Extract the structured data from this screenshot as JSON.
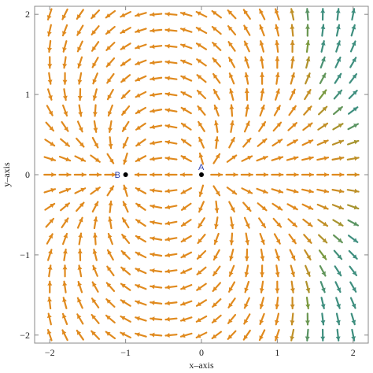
{
  "chart_data": {
    "type": "vector-field",
    "xlabel": "x–axis",
    "ylabel": "y–axis",
    "xlim": [
      -2.2,
      2.2
    ],
    "ylim": [
      -2.1,
      2.1
    ],
    "xticks": [
      -2,
      -1,
      0,
      1,
      2
    ],
    "yticks": [
      -2,
      -1,
      0,
      1,
      2
    ],
    "x_tick_labels": [
      "−2",
      "−1",
      "0",
      "1",
      "2"
    ],
    "y_tick_labels": [
      "−2",
      "−1",
      "0",
      "1",
      "2"
    ],
    "points": [
      {
        "label": "A",
        "x": 0,
        "y": 0
      },
      {
        "label": "B",
        "x": -1,
        "y": 0
      }
    ],
    "colors": {
      "arrow_main": "#e08a1e",
      "arrow_green": "#7f9a3a",
      "arrow_teal": "#3f8f7f",
      "frame": "#888888",
      "point": "#000000",
      "point_label": "#2a3fb0"
    }
  }
}
